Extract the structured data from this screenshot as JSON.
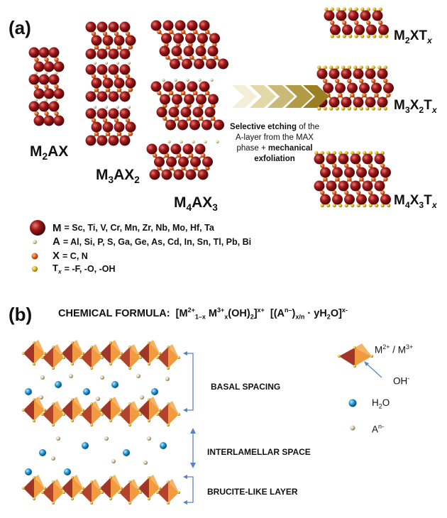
{
  "panel_a": {
    "label": "(a)",
    "max_phases": [
      {
        "base": "M",
        "sub1": "2",
        "mid": "AX",
        "sub2": ""
      },
      {
        "base": "M",
        "sub1": "3",
        "mid": "AX",
        "sub2": "2"
      },
      {
        "base": "M",
        "sub1": "4",
        "mid": "AX",
        "sub2": "3"
      }
    ],
    "arrow_caption": {
      "part1": "Selective etching",
      "part2": " of the A-layer from the MAX phase + ",
      "part3": "mechanical exfoliation"
    },
    "mxenes": [
      {
        "M": "M",
        "s1": "2",
        "X": "X",
        "s2": "",
        "T": "T",
        "x": "x"
      },
      {
        "M": "M",
        "s1": "3",
        "X": "X",
        "s2": "2",
        "T": "T",
        "x": "x"
      },
      {
        "M": "M",
        "s1": "4",
        "X": "X",
        "s2": "3",
        "T": "T",
        "x": "x"
      }
    ],
    "legend": [
      {
        "key": "M",
        "text": "= Sc, Ti, V, Cr, Mn, Zr, Nb, Mo, Hf, Ta",
        "icon": "metal-atom-icon",
        "color": "#a3191b"
      },
      {
        "key": "A",
        "text": "= Al, Si, P, S, Ga, Ge, As, Cd, In, Sn, Tl, Pb, Bi",
        "icon": "a-atom-icon",
        "color": "#d8cf9a"
      },
      {
        "key": "X",
        "text": "= C, N",
        "icon": "x-atom-icon",
        "color": "#e86a1c"
      },
      {
        "key": "T",
        "keysub": "x",
        "text": "= -F, -O, -OH",
        "icon": "t-atom-icon",
        "color": "#e3b418"
      }
    ]
  },
  "panel_b": {
    "label": "(b)",
    "formula_title": "CHEMICAL FORMULA",
    "formula": "[M2+1–x M3+x(OH)2]x+ [(An–)x/n · yH2O]x-",
    "layer_labels": [
      "BASAL SPACING",
      "INTERLAMELLAR SPACE",
      "BRUCITE-LIKE LAYER"
    ],
    "legend": {
      "octahedron": "M2+ / M3+",
      "hydroxide": "OH-",
      "water": "H2O",
      "anion": "An-"
    }
  },
  "colors": {
    "metal": "#9e1a1c",
    "carbon": "#e3611a",
    "oct_light": "#f19a3e",
    "oct_dark": "#a2352a",
    "water": "#1b8fd0",
    "anion": "#d6c9a0",
    "arrow": "#b8a24c",
    "bracket": "#5a82c5"
  }
}
